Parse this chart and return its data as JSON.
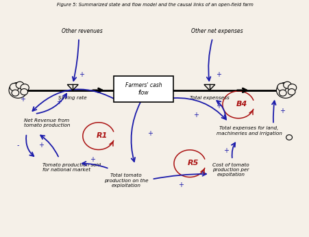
{
  "title": "Figure 5: Summarized state and flow model and the causal links of an open-field farm",
  "bg_color": "#f5f0e8",
  "blue": "#1a1aaa",
  "red": "#aa1111",
  "box_text": "Farmers' cash\nflow",
  "other_revenues": "Other revenues",
  "other_net_expenses": "Other net expenses",
  "saving_rate": "Saving rate",
  "total_expensess": "Total expensess",
  "net_revenue": "Net Revenue from\ntomato production",
  "tomato_sold": "Tomato production sold\nfor national market",
  "total_tomato": "Total tomato\nproduction on the\nexploitation",
  "cost_tomato": "Cost of tomato\nproduction per\nexpoitation",
  "total_expenses_land": "Total expenses for land,\nmachineries and irrigation",
  "R1": "R1",
  "R5": "R5",
  "B4": "B4"
}
